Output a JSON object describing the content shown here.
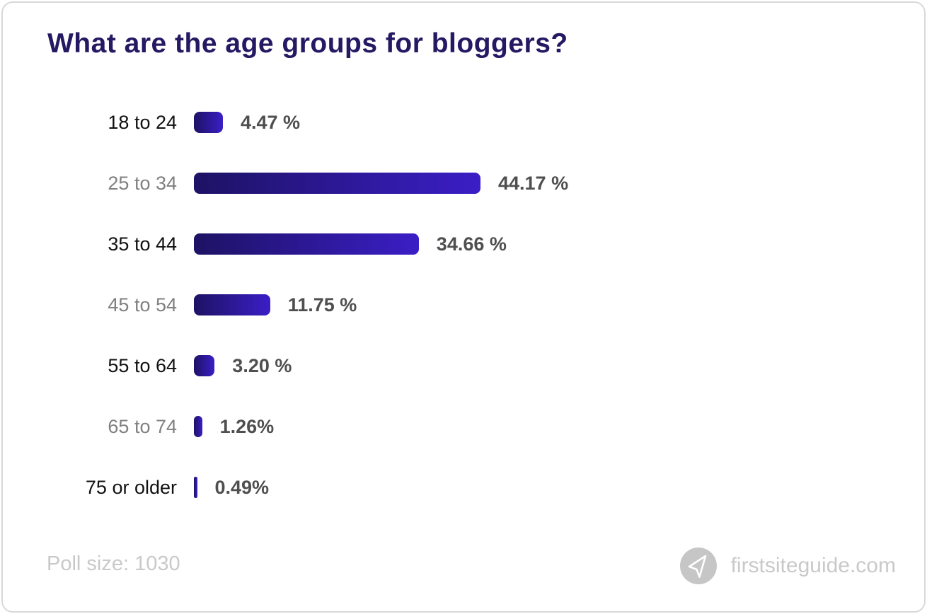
{
  "title": "What are the age groups for bloggers?",
  "chart_data": {
    "type": "bar",
    "orientation": "horizontal",
    "title": "What are the age groups for bloggers?",
    "categories": [
      "18 to 24",
      "25 to 34",
      "35 to 44",
      "45 to 54",
      "55 to 64",
      "65 to 74",
      "75 or older"
    ],
    "values": [
      4.47,
      44.17,
      34.66,
      11.75,
      3.2,
      1.26,
      0.49
    ],
    "value_labels": [
      "4.47 %",
      "44.17 %",
      "34.66 %",
      "11.75 %",
      "3.20 %",
      "1.26%",
      "0.49%"
    ],
    "unit": "%",
    "xlim": [
      0,
      50
    ],
    "grid": false,
    "legend": "none",
    "poll_size": 1030,
    "bar_color_gradient": [
      "#1d1264",
      "#3b1ec6"
    ]
  },
  "footer": {
    "poll_size_text": "Poll size: 1030",
    "brand_text": "firstsiteguide.com"
  },
  "icons": {
    "brand_logo": "paper-plane-icon"
  },
  "colors": {
    "title_text": "#261963",
    "label_dark": "#111111",
    "label_gray": "#808080",
    "value_text": "#4f4f4f",
    "footer_text": "#c9c9c9",
    "logo_circle": "#c6c6c6",
    "card_border": "#d9d9d9",
    "bar_gradient_start": "#1d1264",
    "bar_gradient_end": "#3b1ec6"
  }
}
